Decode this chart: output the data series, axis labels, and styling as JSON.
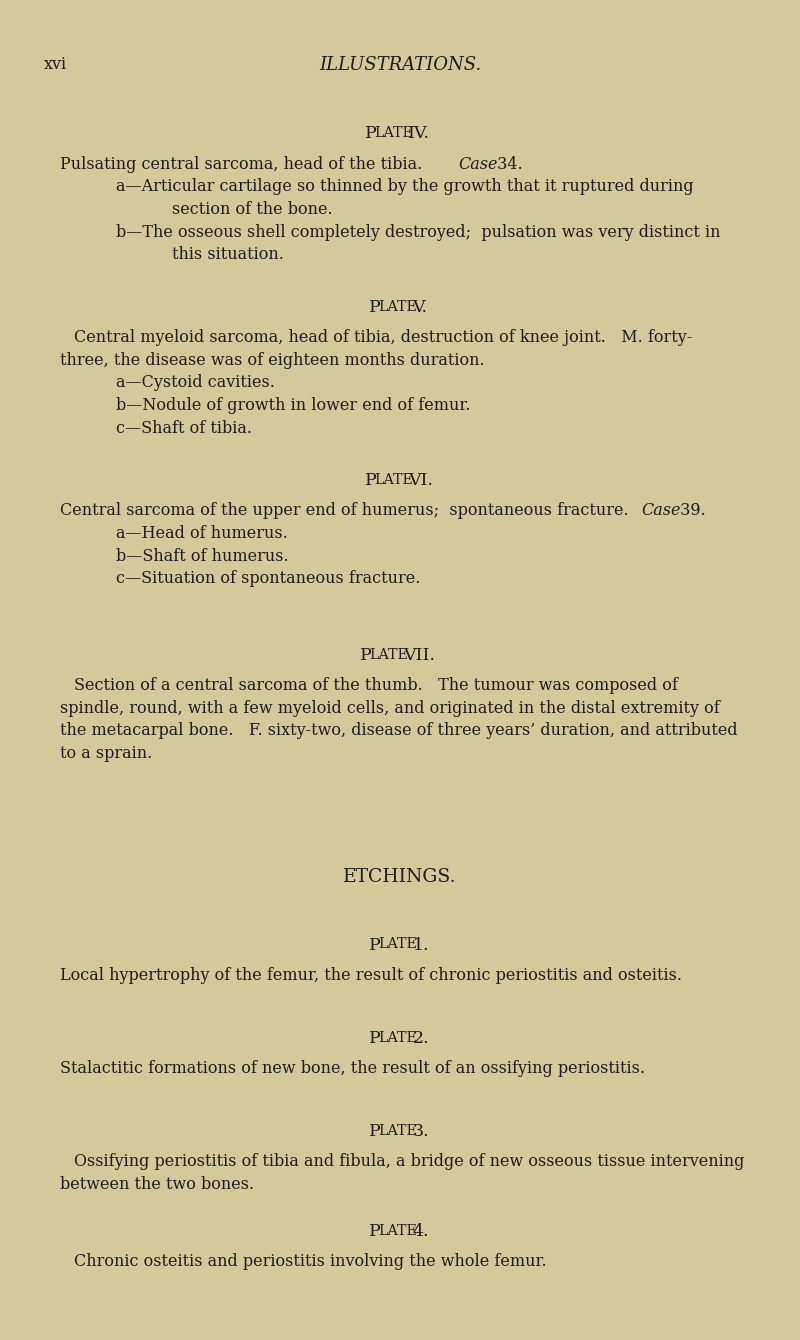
{
  "bg_color": "#d4c99a",
  "text_color": "#1c1c1c",
  "header_xvi": "xvi",
  "header_title": "ILLUSTRATIONS.",
  "sections": [
    {
      "type": "plate_heading",
      "text": "Plate IV.",
      "space_before": 0.03
    },
    {
      "type": "body_intro",
      "parts": [
        {
          "text": "Pulsating central sarcoma, head of the tibia.   ",
          "italic": false
        },
        {
          "text": "Case",
          "italic": true
        },
        {
          "text": " 34.",
          "italic": false
        }
      ]
    },
    {
      "type": "sub_item",
      "label": "a",
      "lines": [
        "Articular cartilage so thinned by the growth that it ruptured during",
        "section of the bone."
      ]
    },
    {
      "type": "sub_item",
      "label": "b",
      "lines": [
        "The osseous shell completely destroyed;  pulsation was very distinct in",
        "this situation."
      ]
    },
    {
      "type": "plate_heading",
      "text": "Plate V.",
      "space_before": 0.022
    },
    {
      "type": "body_para",
      "lines": [
        "Central myeloid sarcoma, head of tibia, destruction of knee joint.   M. forty-",
        "three, the disease was of eighteen months duration."
      ],
      "indent_first": true
    },
    {
      "type": "sub_item",
      "label": "a",
      "lines": [
        "Cystoid cavities."
      ]
    },
    {
      "type": "sub_item",
      "label": "b",
      "lines": [
        "Nodule of growth in lower end of femur."
      ]
    },
    {
      "type": "sub_item",
      "label": "c",
      "lines": [
        "Shaft of tibia."
      ]
    },
    {
      "type": "plate_heading",
      "text": "Plate VI.",
      "space_before": 0.022
    },
    {
      "type": "body_intro",
      "parts": [
        {
          "text": "Central sarcoma of the upper end of humerus;  spontaneous fracture.   ",
          "italic": false
        },
        {
          "text": "Case",
          "italic": true
        },
        {
          "text": " 39.",
          "italic": false
        }
      ]
    },
    {
      "type": "sub_item",
      "label": "a",
      "lines": [
        "Head of humerus."
      ]
    },
    {
      "type": "sub_item",
      "label": "b",
      "lines": [
        "Shaft of humerus."
      ]
    },
    {
      "type": "sub_item",
      "label": "c",
      "lines": [
        "Situation of spontaneous fracture."
      ]
    },
    {
      "type": "plate_heading",
      "text": "Plate VII.",
      "space_before": 0.04
    },
    {
      "type": "body_para",
      "lines": [
        "Section of a central sarcoma of the thumb.   The tumour was composed of",
        "spindle, round, with a few myeloid cells, and originated in the distal extremity of",
        "the metacarpal bone.   F. sixty-two, disease of three years’ duration, and attributed",
        "to a sprain."
      ],
      "indent_first": true
    },
    {
      "type": "section_heading",
      "text": "ETCHINGS.",
      "space_before": 0.075
    },
    {
      "type": "plate_heading",
      "text": "Plate 1.",
      "space_before": 0.03
    },
    {
      "type": "body_para",
      "lines": [
        "Local hypertrophy of the femur, the result of chronic periostitis and osteitis."
      ],
      "indent_first": false
    },
    {
      "type": "plate_heading",
      "text": "Plate 2.",
      "space_before": 0.03
    },
    {
      "type": "body_para",
      "lines": [
        "Stalactitic formations of new bone, the result of an ossifying periostitis."
      ],
      "indent_first": false
    },
    {
      "type": "plate_heading",
      "text": "Plate 3.",
      "space_before": 0.03
    },
    {
      "type": "body_para",
      "lines": [
        "Ossifying periostitis of tibia and fibula, a bridge of new osseous tissue intervening",
        "between the two bones."
      ],
      "indent_first": true
    },
    {
      "type": "plate_heading",
      "text": "Plate 4.",
      "space_before": 0.018
    },
    {
      "type": "body_para",
      "lines": [
        "Chronic osteitis and periostitis involving the whole femur."
      ],
      "indent_first": true
    }
  ]
}
